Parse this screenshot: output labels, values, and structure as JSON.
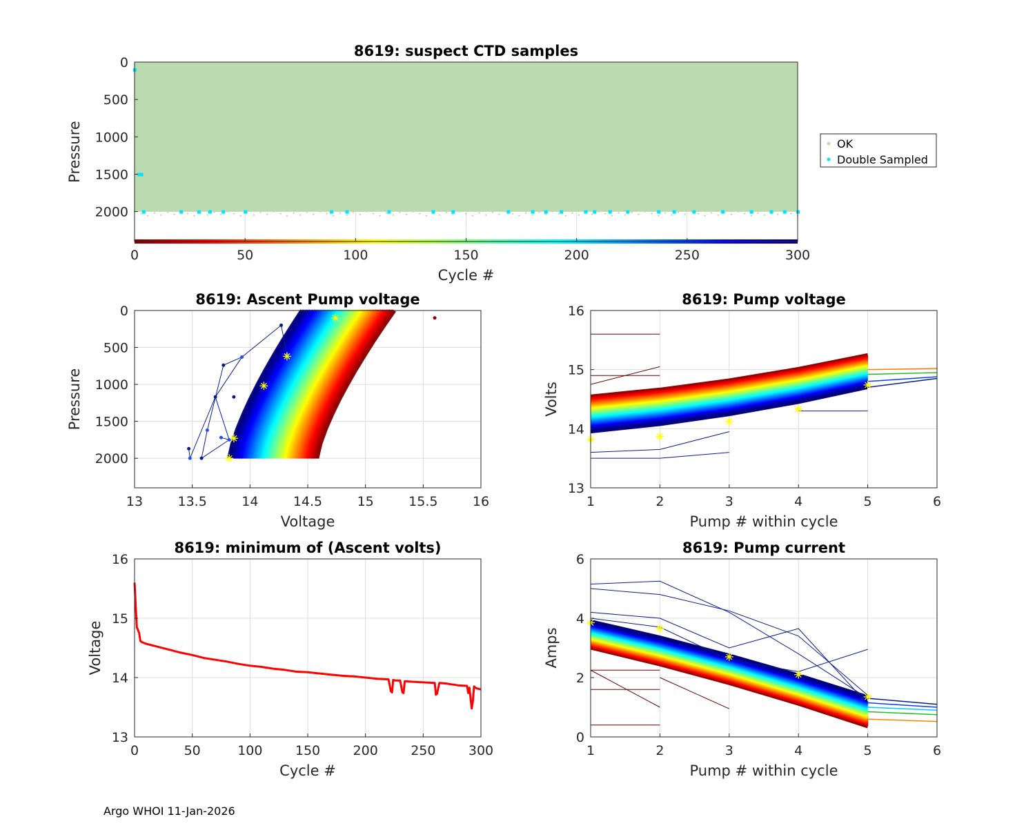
{
  "footer": "Argo WHOI 11-Jan-2026",
  "colors": {
    "ok": "#bcdab0",
    "double": "#00e5ff",
    "axis": "#262626",
    "grid": "#dcdcdc",
    "marker": "#ffff00",
    "minline": "#ff0000"
  },
  "chart_data": [
    {
      "id": "suspect",
      "type": "scatter",
      "title": "8619: suspect CTD samples",
      "xlabel": "Cycle #",
      "ylabel": "Pressure",
      "xlim": [
        0,
        300
      ],
      "ylim": [
        2400,
        0
      ],
      "xticks": [
        0,
        50,
        100,
        150,
        200,
        250,
        300
      ],
      "yticks": [
        0,
        500,
        1000,
        1500,
        2000
      ],
      "legend": {
        "position": "outside-right",
        "entries": [
          "OK",
          "Double Sampled"
        ]
      },
      "ok_region": {
        "cycles": [
          0,
          300
        ],
        "pressure": [
          0,
          2000
        ]
      },
      "double_sampled": [
        {
          "x": 0,
          "y": 100
        },
        {
          "x": 2,
          "y": 1500
        },
        {
          "x": 3,
          "y": 1500
        },
        {
          "x": 4,
          "y": 2000
        },
        {
          "x": 21,
          "y": 2000
        },
        {
          "x": 29,
          "y": 2000
        },
        {
          "x": 34,
          "y": 2000
        },
        {
          "x": 40,
          "y": 2000
        },
        {
          "x": 50,
          "y": 2000
        },
        {
          "x": 89,
          "y": 2000
        },
        {
          "x": 96,
          "y": 2000
        },
        {
          "x": 115,
          "y": 2000
        },
        {
          "x": 135,
          "y": 2000
        },
        {
          "x": 144,
          "y": 2000
        },
        {
          "x": 169,
          "y": 2000
        },
        {
          "x": 180,
          "y": 2000
        },
        {
          "x": 186,
          "y": 2000
        },
        {
          "x": 193,
          "y": 2000
        },
        {
          "x": 204,
          "y": 2000
        },
        {
          "x": 208,
          "y": 2000
        },
        {
          "x": 215,
          "y": 2000
        },
        {
          "x": 223,
          "y": 2000
        },
        {
          "x": 237,
          "y": 2000
        },
        {
          "x": 244,
          "y": 2000
        },
        {
          "x": 253,
          "y": 2000
        },
        {
          "x": 266,
          "y": 2000
        },
        {
          "x": 279,
          "y": 2000
        },
        {
          "x": 288,
          "y": 2000
        },
        {
          "x": 294,
          "y": 2000
        },
        {
          "x": 300,
          "y": 2000
        }
      ],
      "cycle_colorbar": {
        "range": [
          0,
          300
        ],
        "pressure": 2400
      }
    },
    {
      "id": "ascent",
      "type": "line",
      "title": "8619: Ascent Pump voltage",
      "xlabel": "Voltage",
      "ylabel": "Pressure",
      "xlim": [
        13,
        16
      ],
      "ylim": [
        2400,
        0
      ],
      "xticks": [
        13,
        13.5,
        14,
        14.5,
        15,
        15.5,
        16
      ],
      "yticks": [
        0,
        500,
        1000,
        1500,
        2000
      ],
      "band": {
        "cycles": [
          0,
          300
        ],
        "pressure_top": 0,
        "pressure_bottom": 2000,
        "volts_bottom": [
          14.58,
          13.82
        ],
        "volts_top": [
          15.25,
          14.45
        ]
      },
      "outliers": [
        {
          "x": 13.47,
          "y": 1870
        },
        {
          "x": 13.48,
          "y": 2000
        },
        {
          "x": 13.58,
          "y": 2000
        },
        {
          "x": 13.63,
          "y": 1620
        },
        {
          "x": 13.7,
          "y": 1170
        },
        {
          "x": 13.75,
          "y": 1720
        },
        {
          "x": 13.77,
          "y": 740
        },
        {
          "x": 13.82,
          "y": 1750
        },
        {
          "x": 13.86,
          "y": 1170
        },
        {
          "x": 13.93,
          "y": 630
        },
        {
          "x": 14.27,
          "y": 200
        },
        {
          "x": 14.32,
          "y": 600
        },
        {
          "x": 15.6,
          "y": 100
        }
      ],
      "markers": [
        {
          "x": 13.82,
          "y": 2000
        },
        {
          "x": 13.86,
          "y": 1730
        },
        {
          "x": 14.12,
          "y": 1020
        },
        {
          "x": 14.32,
          "y": 620
        },
        {
          "x": 14.74,
          "y": 100
        }
      ]
    },
    {
      "id": "pumpvolt",
      "type": "line",
      "title": "8619: Pump voltage",
      "xlabel": "Pump # within cycle",
      "ylabel": "Volts",
      "xlim": [
        1,
        6
      ],
      "ylim": [
        13,
        16
      ],
      "xticks": [
        1,
        2,
        3,
        4,
        5,
        6
      ],
      "yticks": [
        13,
        14,
        15,
        16
      ],
      "band_start": [
        14.55,
        13.95
      ],
      "band_end": [
        15.25,
        14.7
      ],
      "markers": [
        {
          "x": 1,
          "y": 13.82
        },
        {
          "x": 2,
          "y": 13.87
        },
        {
          "x": 3,
          "y": 14.12
        },
        {
          "x": 4,
          "y": 14.33
        },
        {
          "x": 5,
          "y": 14.74
        }
      ]
    },
    {
      "id": "minvolt",
      "type": "line",
      "title": "8619: minimum of (Ascent volts)",
      "xlabel": "Cycle #",
      "ylabel": "Voltage",
      "xlim": [
        0,
        300
      ],
      "ylim": [
        13,
        16
      ],
      "xticks": [
        0,
        50,
        100,
        150,
        200,
        250,
        300
      ],
      "yticks": [
        13,
        14,
        15,
        16
      ],
      "x": [
        0,
        1,
        2,
        3,
        4,
        5,
        6,
        10,
        20,
        30,
        40,
        50,
        60,
        70,
        80,
        90,
        100,
        110,
        120,
        130,
        140,
        150,
        160,
        170,
        180,
        190,
        200,
        210,
        220,
        222,
        223,
        224,
        226,
        230,
        232,
        233,
        234,
        240,
        250,
        260,
        261,
        262,
        264,
        270,
        280,
        288,
        289,
        290,
        292,
        293,
        294,
        296,
        300
      ],
      "y": [
        15.6,
        15.2,
        14.85,
        14.8,
        14.75,
        14.62,
        14.6,
        14.57,
        14.52,
        14.47,
        14.42,
        14.38,
        14.33,
        14.3,
        14.27,
        14.23,
        14.2,
        14.18,
        14.15,
        14.13,
        14.1,
        14.09,
        14.07,
        14.05,
        14.03,
        14.02,
        14.0,
        13.98,
        13.97,
        13.77,
        13.75,
        13.96,
        13.95,
        13.95,
        13.75,
        13.74,
        13.94,
        13.93,
        13.92,
        13.91,
        13.71,
        13.73,
        13.91,
        13.9,
        13.87,
        13.86,
        13.74,
        13.83,
        13.48,
        13.6,
        13.85,
        13.82,
        13.8
      ]
    },
    {
      "id": "pumpcurr",
      "type": "line",
      "title": "8619: Pump current",
      "xlabel": "Pump # within cycle",
      "ylabel": "Amps",
      "xlim": [
        1,
        6
      ],
      "ylim": [
        0,
        6
      ],
      "xticks": [
        1,
        2,
        3,
        4,
        5,
        6
      ],
      "yticks": [
        0,
        2,
        4,
        6
      ],
      "band_start": [
        3.0,
        3.9
      ],
      "band_end": [
        0.35,
        1.35
      ],
      "markers": [
        {
          "x": 1,
          "y": 3.85
        },
        {
          "x": 2,
          "y": 3.65
        },
        {
          "x": 3,
          "y": 2.7
        },
        {
          "x": 4,
          "y": 2.1
        },
        {
          "x": 5,
          "y": 1.35
        }
      ]
    }
  ]
}
